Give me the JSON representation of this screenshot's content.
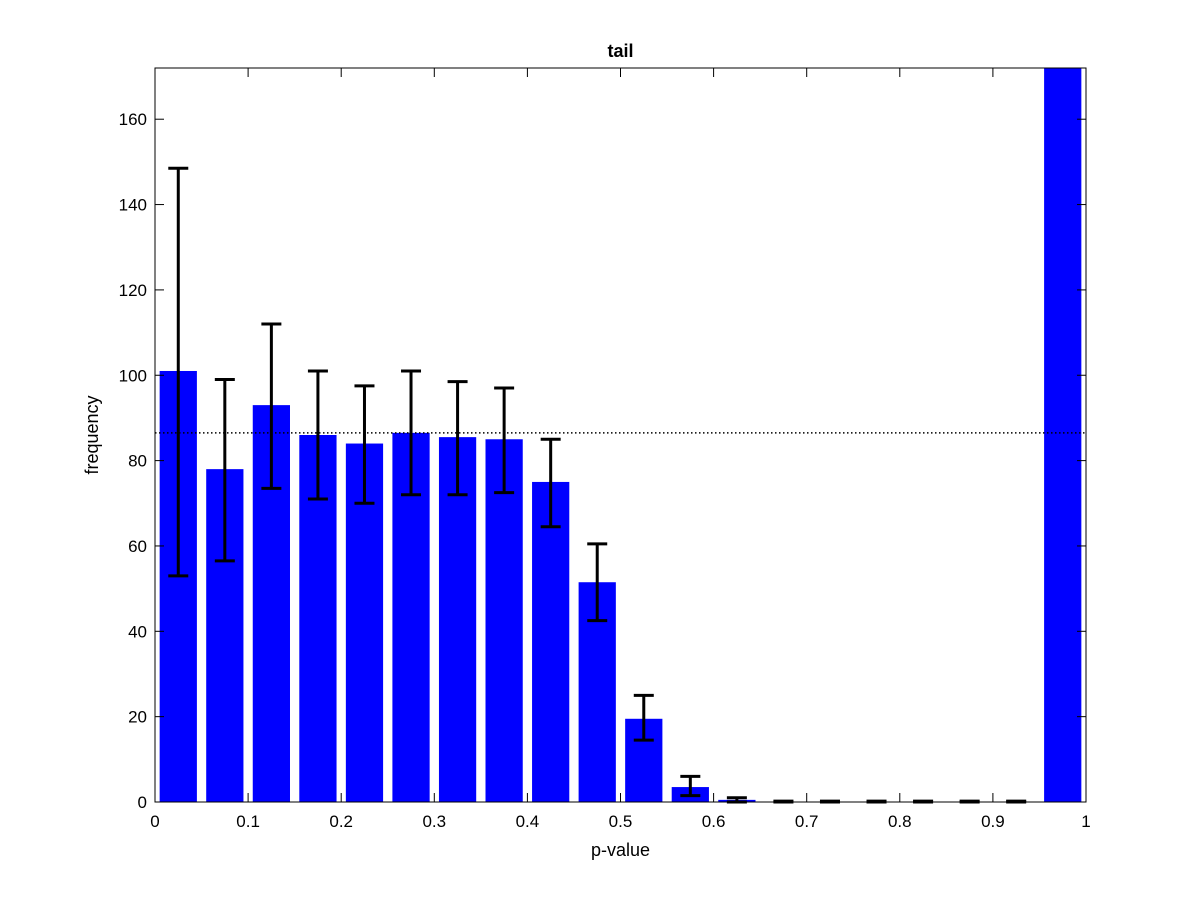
{
  "chart_data": {
    "type": "bar",
    "title": "tail",
    "xlabel": "p-value",
    "ylabel": "frequency",
    "xlim": [
      0,
      1
    ],
    "ylim": [
      0,
      172
    ],
    "xticks": [
      0,
      0.1,
      0.2,
      0.3,
      0.4,
      0.5,
      0.6,
      0.7,
      0.8,
      0.9,
      1
    ],
    "xtick_labels": [
      "0",
      "0.1",
      "0.2",
      "0.3",
      "0.4",
      "0.5",
      "0.6",
      "0.7",
      "0.8",
      "0.9",
      "1"
    ],
    "yticks": [
      0,
      20,
      40,
      60,
      80,
      100,
      120,
      140,
      160
    ],
    "ytick_labels": [
      "0",
      "20",
      "40",
      "60",
      "80",
      "100",
      "120",
      "140",
      "160"
    ],
    "bin_centers": [
      0.025,
      0.075,
      0.125,
      0.175,
      0.225,
      0.275,
      0.325,
      0.375,
      0.425,
      0.475,
      0.525,
      0.575,
      0.625,
      0.675,
      0.725,
      0.775,
      0.825,
      0.875,
      0.925,
      0.975
    ],
    "bin_width": 0.05,
    "values": [
      101,
      78,
      93,
      86,
      84,
      86.5,
      85.5,
      85,
      75,
      51.5,
      19.5,
      3.5,
      0.5,
      0.1,
      0.1,
      0.1,
      0.1,
      0.1,
      0.1,
      172
    ],
    "error_bars": [
      {
        "x": 0.025,
        "low": 53,
        "high": 148.5
      },
      {
        "x": 0.075,
        "low": 56.5,
        "high": 99
      },
      {
        "x": 0.125,
        "low": 73.5,
        "high": 112
      },
      {
        "x": 0.175,
        "low": 71,
        "high": 101
      },
      {
        "x": 0.225,
        "low": 70,
        "high": 97.5
      },
      {
        "x": 0.275,
        "low": 72,
        "high": 101
      },
      {
        "x": 0.325,
        "low": 72,
        "high": 98.5
      },
      {
        "x": 0.375,
        "low": 72.5,
        "high": 97
      },
      {
        "x": 0.425,
        "low": 64.5,
        "high": 85
      },
      {
        "x": 0.475,
        "low": 42.5,
        "high": 60.5
      },
      {
        "x": 0.525,
        "low": 14.5,
        "high": 25
      },
      {
        "x": 0.575,
        "low": 1.5,
        "high": 6
      },
      {
        "x": 0.625,
        "low": 0,
        "high": 1
      },
      {
        "x": 0.675,
        "low": 0,
        "high": 0.2
      },
      {
        "x": 0.725,
        "low": 0,
        "high": 0.2
      },
      {
        "x": 0.775,
        "low": 0,
        "high": 0.2
      },
      {
        "x": 0.825,
        "low": 0,
        "high": 0.2
      },
      {
        "x": 0.875,
        "low": 0,
        "high": 0.2
      },
      {
        "x": 0.925,
        "low": 0,
        "high": 0.2
      }
    ],
    "reference_line": {
      "y": 86.5,
      "style": "dotted"
    },
    "grid": false,
    "colors": {
      "bar": "#0000ff",
      "error_bar": "#000000",
      "reference_line": "#000000"
    }
  }
}
